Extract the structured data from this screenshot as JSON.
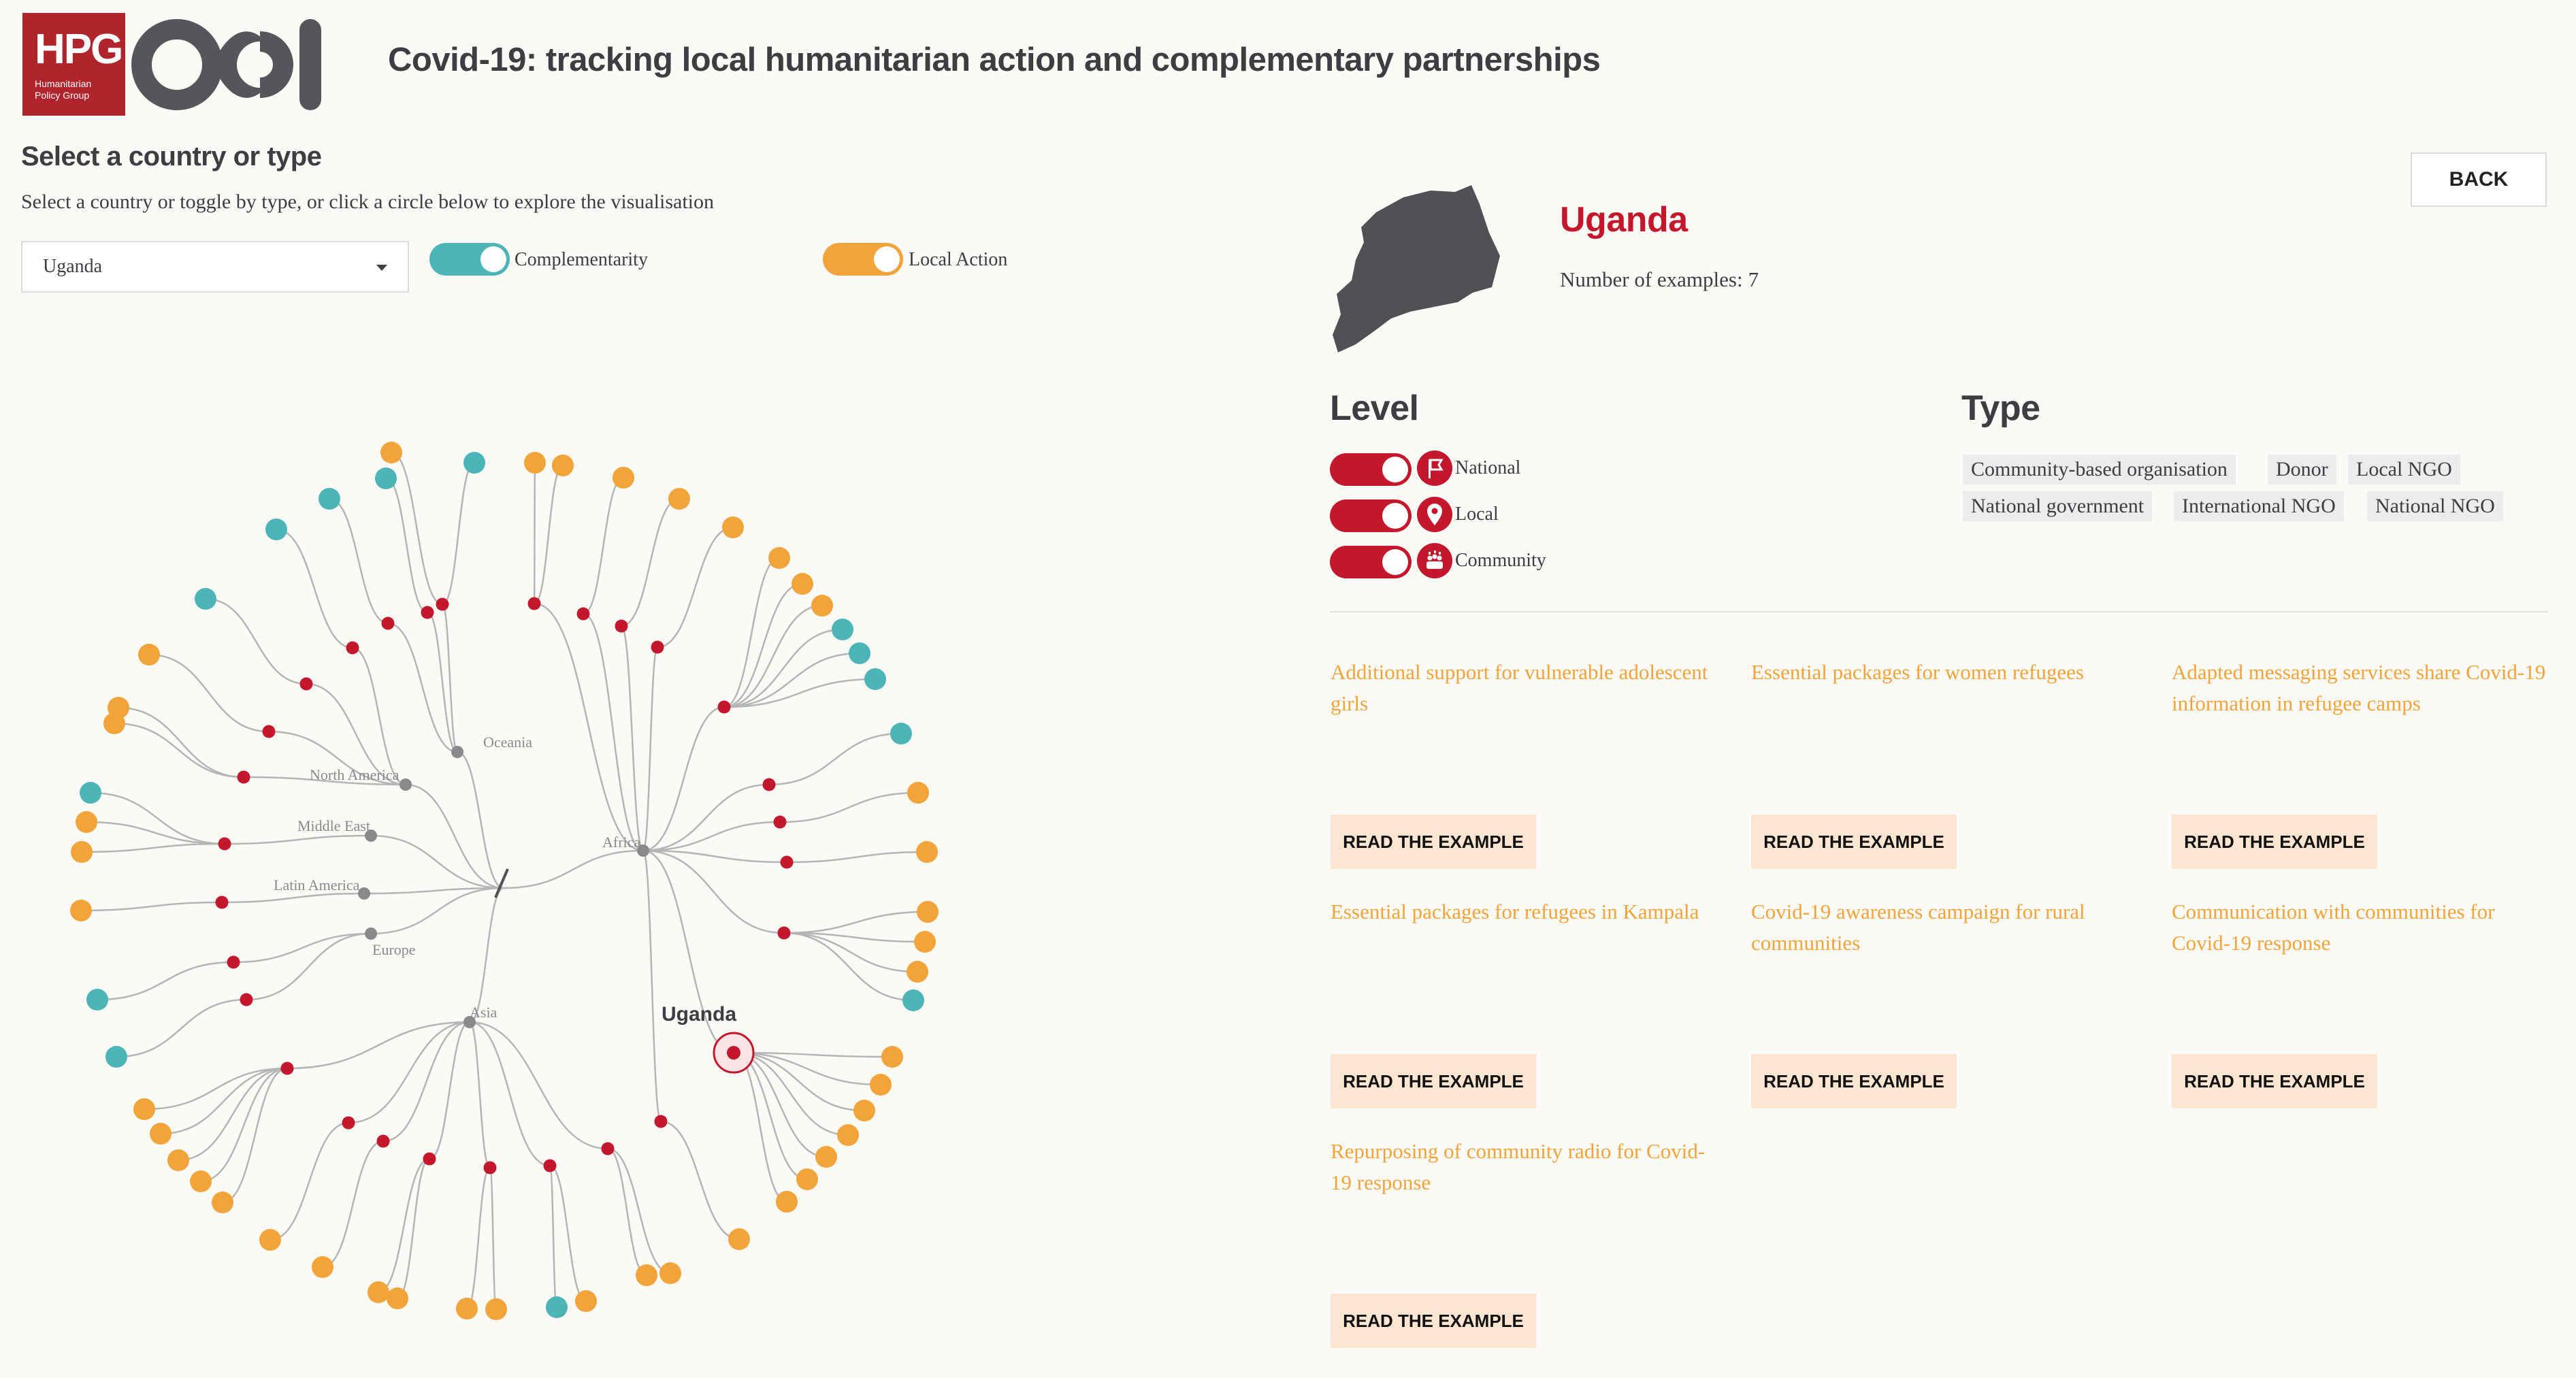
{
  "header": {
    "hpg_logo": "HPG",
    "hpg_logo_sub_1": "Humanitarian",
    "hpg_logo_sub_2": "Policy Group",
    "title": "Covid-19: tracking local humanitarian action and complementary partnerships"
  },
  "selector": {
    "heading": "Select a country or type",
    "instructions": "Select a country or toggle by type, or click a circle below to explore the visualisation",
    "country_value": "Uganda",
    "toggles": [
      {
        "label": "Complementarity",
        "on": true,
        "color": "#4bb5b7"
      },
      {
        "label": "Local Action",
        "on": true,
        "color": "#f2a33a"
      }
    ]
  },
  "tree": {
    "regions": [
      "Oceania",
      "North America",
      "Middle East",
      "Latin America",
      "Europe",
      "Asia",
      "Africa"
    ],
    "selected_country": "Uganda",
    "colors": {
      "complementarity": "#4bb5b7",
      "local_action": "#f2a33a",
      "country": "#c4172c",
      "region": "#8a8a8a",
      "link": "#b5b5b5"
    }
  },
  "detail": {
    "back_label": "BACK",
    "country_name": "Uganda",
    "examples_label": "Number of examples:",
    "examples_count": "7",
    "level_heading": "Level",
    "type_heading": "Type",
    "levels": [
      {
        "label": "National",
        "icon": "flag-icon",
        "on": true
      },
      {
        "label": "Local",
        "icon": "location-pin-icon",
        "on": true
      },
      {
        "label": "Community",
        "icon": "community-icon",
        "on": true
      }
    ],
    "types": [
      "Community-based organisation",
      "Donor",
      "Local NGO",
      "National government",
      "International NGO",
      "National NGO"
    ],
    "read_label": "READ THE EXAMPLE",
    "examples": [
      {
        "title": "Additional support for vulnerable adolescent girls"
      },
      {
        "title": "Essential packages for women refugees"
      },
      {
        "title": "Adapted messaging services share Covid-19 information in refugee camps"
      },
      {
        "title": "Essential packages for refugees in Kampala"
      },
      {
        "title": "Covid-19 awareness campaign for rural communities"
      },
      {
        "title": "Communication with communities for Covid-19 response"
      },
      {
        "title": "Repurposing of community radio for Covid-19 response"
      }
    ]
  }
}
